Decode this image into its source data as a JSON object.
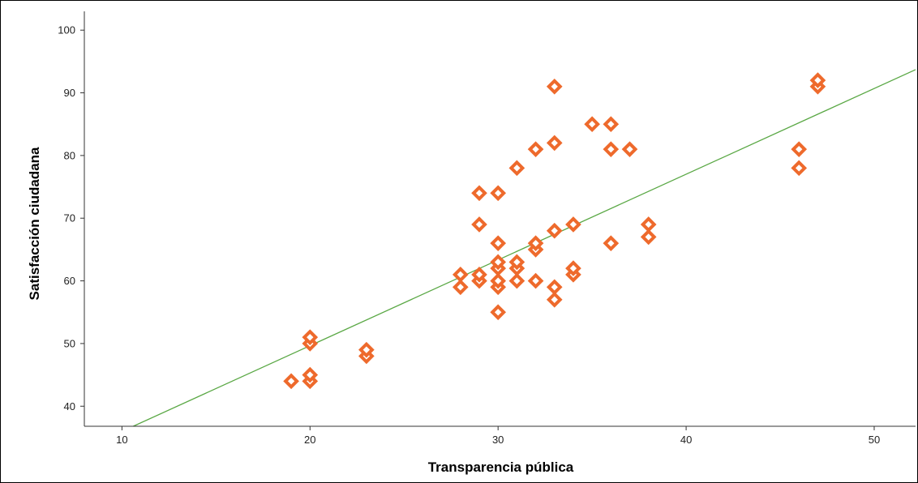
{
  "chart_data": {
    "type": "scatter",
    "title": "",
    "xlabel": "Transparencia pública",
    "ylabel": "Satisfacción ciudadana",
    "xlim": [
      8,
      52.2
    ],
    "ylim": [
      36.8,
      103
    ],
    "xticks": [
      10,
      20,
      30,
      40,
      50
    ],
    "yticks": [
      40,
      50,
      60,
      70,
      80,
      90,
      100
    ],
    "grid": false,
    "legend": "none",
    "marker_color": "#ee6a2c",
    "fit_line_color": "#5aa845",
    "fit_line": {
      "type": "linear",
      "points": [
        [
          10.6,
          36.8
        ],
        [
          52.2,
          93.7
        ]
      ]
    },
    "points": [
      {
        "x": 19,
        "y": 44
      },
      {
        "x": 20,
        "y": 44
      },
      {
        "x": 20,
        "y": 45
      },
      {
        "x": 20,
        "y": 50
      },
      {
        "x": 20,
        "y": 51
      },
      {
        "x": 23,
        "y": 48
      },
      {
        "x": 23,
        "y": 49
      },
      {
        "x": 28,
        "y": 59
      },
      {
        "x": 28,
        "y": 61
      },
      {
        "x": 29,
        "y": 60
      },
      {
        "x": 29,
        "y": 61
      },
      {
        "x": 29,
        "y": 69
      },
      {
        "x": 29,
        "y": 74
      },
      {
        "x": 30,
        "y": 55
      },
      {
        "x": 30,
        "y": 59
      },
      {
        "x": 30,
        "y": 60
      },
      {
        "x": 30,
        "y": 62
      },
      {
        "x": 30,
        "y": 63
      },
      {
        "x": 30,
        "y": 66
      },
      {
        "x": 30,
        "y": 74
      },
      {
        "x": 31,
        "y": 60
      },
      {
        "x": 31,
        "y": 62
      },
      {
        "x": 31,
        "y": 63
      },
      {
        "x": 31,
        "y": 78
      },
      {
        "x": 32,
        "y": 60
      },
      {
        "x": 32,
        "y": 65
      },
      {
        "x": 32,
        "y": 66
      },
      {
        "x": 32,
        "y": 81
      },
      {
        "x": 33,
        "y": 57
      },
      {
        "x": 33,
        "y": 59
      },
      {
        "x": 33,
        "y": 68
      },
      {
        "x": 33,
        "y": 82
      },
      {
        "x": 33,
        "y": 91
      },
      {
        "x": 34,
        "y": 61
      },
      {
        "x": 34,
        "y": 62
      },
      {
        "x": 34,
        "y": 69
      },
      {
        "x": 35,
        "y": 85
      },
      {
        "x": 36,
        "y": 66
      },
      {
        "x": 36,
        "y": 81
      },
      {
        "x": 36,
        "y": 85
      },
      {
        "x": 37,
        "y": 81
      },
      {
        "x": 38,
        "y": 67
      },
      {
        "x": 38,
        "y": 69
      },
      {
        "x": 46,
        "y": 78
      },
      {
        "x": 46,
        "y": 81
      },
      {
        "x": 47,
        "y": 91
      },
      {
        "x": 47,
        "y": 92
      }
    ]
  }
}
